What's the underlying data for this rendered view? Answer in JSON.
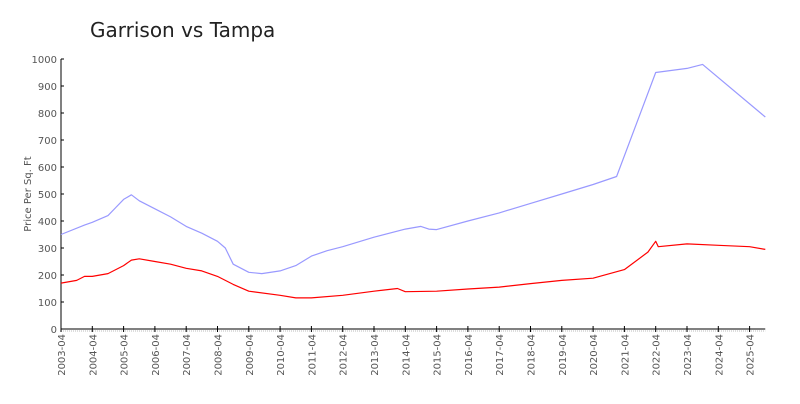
{
  "chart_data": {
    "type": "line",
    "title": "Garrison vs Tampa",
    "xlabel": "",
    "ylabel": "Price Per Sq. Ft",
    "ylim": [
      0,
      1000
    ],
    "yticks": [
      0,
      100,
      200,
      300,
      400,
      500,
      600,
      700,
      800,
      900,
      1000
    ],
    "xlim": [
      "2003-04",
      "2025-10"
    ],
    "xticks": [
      "2003-04",
      "2004-04",
      "2005-04",
      "2006-04",
      "2007-04",
      "2008-04",
      "2009-04",
      "2010-04",
      "2011-04",
      "2012-04",
      "2013-04",
      "2014-04",
      "2015-04",
      "2016-04",
      "2017-04",
      "2018-04",
      "2019-04",
      "2020-04",
      "2021-04",
      "2022-04",
      "2023-04",
      "2024-04",
      "2025-04"
    ],
    "grid": false,
    "series": [
      {
        "color": "#9999ff",
        "points": [
          [
            "2003-04",
            350
          ],
          [
            "2004-01",
            385
          ],
          [
            "2004-04",
            395
          ],
          [
            "2004-10",
            420
          ],
          [
            "2005-01",
            450
          ],
          [
            "2005-04",
            480
          ],
          [
            "2005-07",
            497
          ],
          [
            "2005-10",
            475
          ],
          [
            "2006-04",
            445
          ],
          [
            "2006-10",
            415
          ],
          [
            "2007-04",
            380
          ],
          [
            "2007-10",
            355
          ],
          [
            "2008-04",
            325
          ],
          [
            "2008-07",
            300
          ],
          [
            "2008-10",
            240
          ],
          [
            "2009-04",
            210
          ],
          [
            "2009-09",
            205
          ],
          [
            "2010-04",
            215
          ],
          [
            "2010-10",
            235
          ],
          [
            "2011-04",
            270
          ],
          [
            "2011-10",
            290
          ],
          [
            "2012-04",
            305
          ],
          [
            "2013-04",
            340
          ],
          [
            "2014-04",
            370
          ],
          [
            "2014-10",
            380
          ],
          [
            "2015-01",
            370
          ],
          [
            "2015-04",
            368
          ],
          [
            "2016-04",
            400
          ],
          [
            "2017-04",
            430
          ],
          [
            "2018-04",
            465
          ],
          [
            "2019-04",
            500
          ],
          [
            "2020-04",
            535
          ],
          [
            "2021-01",
            565
          ],
          [
            "2022-04",
            950
          ],
          [
            "2023-04",
            965
          ],
          [
            "2023-10",
            980
          ],
          [
            "2025-10",
            785
          ]
        ]
      },
      {
        "color": "#ff0000",
        "points": [
          [
            "2003-04",
            170
          ],
          [
            "2003-10",
            180
          ],
          [
            "2004-01",
            195
          ],
          [
            "2004-04",
            195
          ],
          [
            "2004-10",
            205
          ],
          [
            "2005-04",
            235
          ],
          [
            "2005-07",
            255
          ],
          [
            "2005-10",
            260
          ],
          [
            "2006-04",
            250
          ],
          [
            "2006-10",
            240
          ],
          [
            "2007-04",
            225
          ],
          [
            "2007-10",
            215
          ],
          [
            "2008-04",
            195
          ],
          [
            "2008-10",
            165
          ],
          [
            "2009-04",
            140
          ],
          [
            "2010-04",
            125
          ],
          [
            "2010-10",
            115
          ],
          [
            "2011-04",
            115
          ],
          [
            "2012-04",
            125
          ],
          [
            "2013-04",
            140
          ],
          [
            "2014-01",
            150
          ],
          [
            "2014-04",
            138
          ],
          [
            "2015-04",
            140
          ],
          [
            "2016-04",
            148
          ],
          [
            "2017-04",
            155
          ],
          [
            "2018-04",
            168
          ],
          [
            "2019-04",
            180
          ],
          [
            "2020-04",
            188
          ],
          [
            "2021-04",
            220
          ],
          [
            "2022-01",
            285
          ],
          [
            "2022-04",
            325
          ],
          [
            "2022-05",
            305
          ],
          [
            "2023-04",
            315
          ],
          [
            "2024-04",
            310
          ],
          [
            "2025-04",
            305
          ],
          [
            "2025-10",
            295
          ]
        ]
      }
    ]
  }
}
